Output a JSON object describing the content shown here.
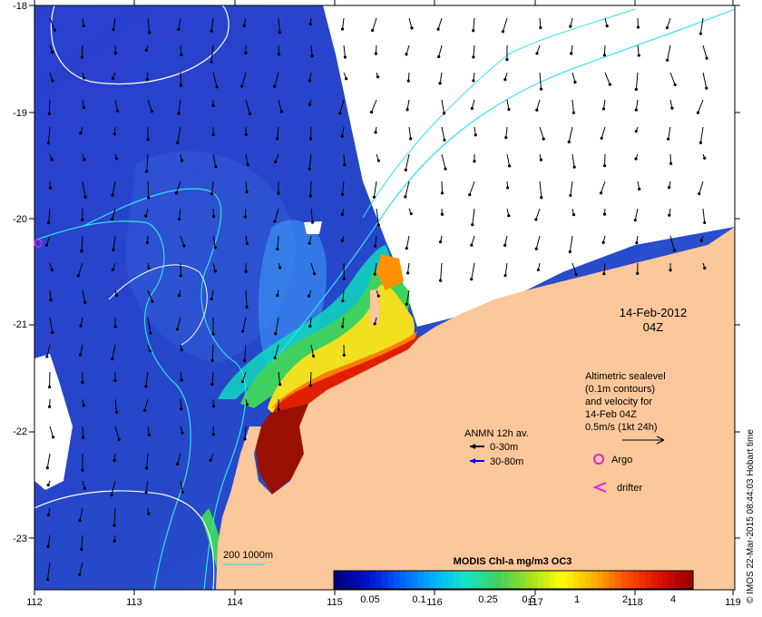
{
  "map": {
    "lon_ticks": [
      "112",
      "113",
      "114",
      "115",
      "116",
      "117",
      "118",
      "119"
    ],
    "lat_ticks": [
      "-18",
      "-19",
      "-20",
      "-21",
      "-22",
      "-23"
    ],
    "lon_range": [
      112,
      119
    ],
    "lat_range": [
      -23.5,
      -18
    ],
    "colors": {
      "ocean_deep": "#2040c8",
      "land": "#fcc79a",
      "cloud": "#ffffff",
      "contour_200": "#30e0e8",
      "contour_1000": "#ffffff",
      "argo": "#e020e0",
      "drifter": "#e020e0",
      "vector_shallow": "#000000",
      "vector_deep": "#0000ff"
    }
  },
  "date_label": {
    "date": "14-Feb-2012",
    "time": "04Z"
  },
  "altimetry_note": {
    "line1": "Altimetric sealevel",
    "line2": "(0.1m contours)",
    "line3": "and velocity for",
    "line4": "14-Feb 04Z",
    "line5": "0.5m/s (1kt 24h)"
  },
  "anmn_legend": {
    "title": "ANMN 12h av.",
    "shallow": "0-30m",
    "deep": "30-80m"
  },
  "markers": {
    "argo": "Argo",
    "drifter": "drifter"
  },
  "colorbar": {
    "title": "MODIS Chl-a mg/m3 OC3",
    "ticks": [
      "0.05",
      "0.1",
      "0.25",
      "0.5",
      "1",
      "2",
      "4"
    ],
    "stops": [
      "#00007f",
      "#0010d0",
      "#0060ff",
      "#00b0ff",
      "#10e8c8",
      "#40d060",
      "#a0e020",
      "#ffff00",
      "#ffb000",
      "#ff5000",
      "#e01000",
      "#9a0000"
    ]
  },
  "bathy_legend": {
    "label": "200  1000m"
  },
  "credit": "© IMOS 22-Mar-2015 08:44:03 Hobart time"
}
